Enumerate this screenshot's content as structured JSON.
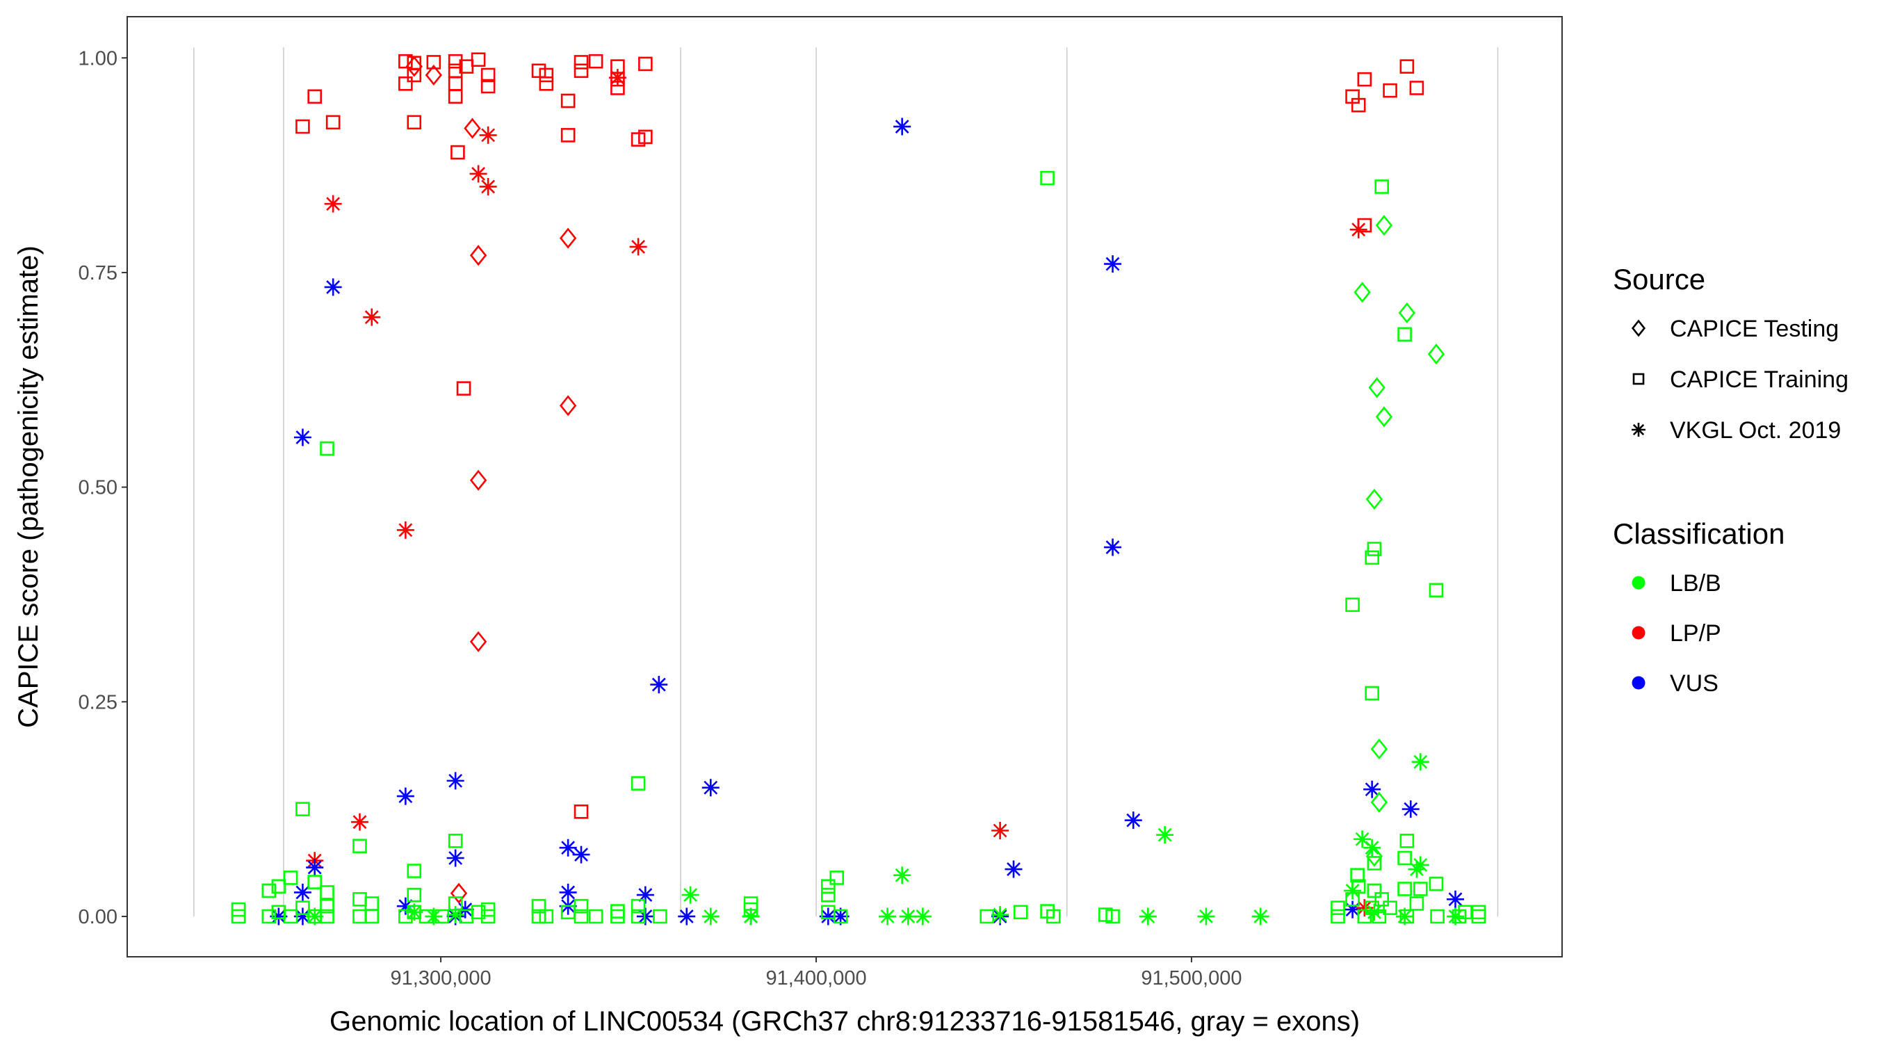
{
  "chart_data": {
    "type": "scatter",
    "title": "",
    "xlabel": "Genomic location of LINC00534 (GRCh37 chr8:91233716-91581546, gray = exons)",
    "ylabel": "CAPICE score (pathogenicity estimate)",
    "xlim": [
      91216450,
      91598730
    ],
    "ylim": [
      -0.047,
      1.048
    ],
    "x_ticks": [
      91300000,
      91400000,
      91500000
    ],
    "x_tick_labels": [
      "91,300,000",
      "91,400,000",
      "91,500,000"
    ],
    "y_ticks": [
      0,
      0.25,
      0.5,
      0.75,
      1.0
    ],
    "y_tick_labels": [
      "0.00",
      "0.25",
      "0.50",
      "0.75",
      "1.00"
    ],
    "grid": false,
    "exon_lines": [
      91234200,
      91258100,
      91363900,
      91400000,
      91466800,
      91581600
    ],
    "exon_color": "#cccccc",
    "legend_placement": "right",
    "legends": {
      "source": {
        "title": "Source",
        "items": [
          {
            "label": "CAPICE Testing",
            "shape": "diamond"
          },
          {
            "label": "CAPICE Training",
            "shape": "square"
          },
          {
            "label": "VKGL Oct. 2019",
            "shape": "asterisk"
          }
        ]
      },
      "classification": {
        "title": "Classification",
        "items": [
          {
            "label": "LB/B",
            "color": "#00ff00"
          },
          {
            "label": "LP/P",
            "color": "#ff0000"
          },
          {
            "label": "VUS",
            "color": "#0000ff"
          }
        ]
      }
    },
    "series": [
      {
        "source": "CAPICE Training",
        "shape": "square",
        "class": "LP/P",
        "color": "#ff0000",
        "points": [
          [
            91290600,
            0.996
          ],
          [
            91292900,
            0.994
          ],
          [
            91298100,
            0.995
          ],
          [
            91303900,
            0.996
          ],
          [
            91310000,
            0.998
          ],
          [
            91303900,
            0.985
          ],
          [
            91306800,
            0.99
          ],
          [
            91303900,
            0.97
          ],
          [
            91312600,
            0.98
          ],
          [
            91312600,
            0.967
          ],
          [
            91292900,
            0.98
          ],
          [
            91290600,
            0.97
          ],
          [
            91292900,
            0.925
          ],
          [
            91303900,
            0.955
          ],
          [
            91304500,
            0.89
          ],
          [
            91326100,
            0.985
          ],
          [
            91328100,
            0.98
          ],
          [
            91328100,
            0.97
          ],
          [
            91337400,
            0.995
          ],
          [
            91341300,
            0.996
          ],
          [
            91337400,
            0.985
          ],
          [
            91347100,
            0.99
          ],
          [
            91347100,
            0.975
          ],
          [
            91347100,
            0.965
          ],
          [
            91354500,
            0.993
          ],
          [
            91333900,
            0.95
          ],
          [
            91333900,
            0.91
          ],
          [
            91352600,
            0.905
          ],
          [
            91354500,
            0.908
          ],
          [
            91266400,
            0.955
          ],
          [
            91263200,
            0.92
          ],
          [
            91271300,
            0.925
          ],
          [
            91306100,
            0.615
          ],
          [
            91337400,
            0.122
          ],
          [
            91542900,
            0.955
          ],
          [
            91544500,
            0.945
          ],
          [
            91546100,
            0.975
          ],
          [
            91552900,
            0.962
          ],
          [
            91557400,
            0.99
          ],
          [
            91560000,
            0.965
          ],
          [
            91546100,
            0.805
          ]
        ]
      },
      {
        "source": "CAPICE Testing",
        "shape": "diamond",
        "class": "LP/P",
        "color": "#ff0000",
        "points": [
          [
            91298100,
            0.98
          ],
          [
            91308400,
            0.918
          ],
          [
            91310000,
            0.77
          ],
          [
            91333900,
            0.79
          ],
          [
            91333900,
            0.595
          ],
          [
            91310000,
            0.508
          ],
          [
            91310000,
            0.32
          ],
          [
            91292900,
            0.99
          ],
          [
            91304800,
            0.027
          ]
        ]
      },
      {
        "source": "VKGL Oct. 2019",
        "shape": "asterisk",
        "class": "LP/P",
        "color": "#ff0000",
        "points": [
          [
            91312600,
            0.91
          ],
          [
            91310000,
            0.865
          ],
          [
            91312600,
            0.85
          ],
          [
            91271300,
            0.83
          ],
          [
            91281600,
            0.698
          ],
          [
            91352600,
            0.78
          ],
          [
            91290600,
            0.45
          ],
          [
            91278400,
            0.11
          ],
          [
            91266400,
            0.065
          ],
          [
            91449000,
            0.1
          ],
          [
            91544500,
            0.8
          ],
          [
            91546100,
            0.01
          ],
          [
            91347100,
            0.977
          ]
        ]
      },
      {
        "source": "VKGL Oct. 2019",
        "shape": "asterisk",
        "class": "VUS",
        "color": "#0000ff",
        "points": [
          [
            91422900,
            0.92
          ],
          [
            91479000,
            0.76
          ],
          [
            91271300,
            0.733
          ],
          [
            91263200,
            0.558
          ],
          [
            91479000,
            0.43
          ],
          [
            91358100,
            0.27
          ],
          [
            91303900,
            0.158
          ],
          [
            91371900,
            0.15
          ],
          [
            91290600,
            0.14
          ],
          [
            91548100,
            0.148
          ],
          [
            91558400,
            0.125
          ],
          [
            91484500,
            0.112
          ],
          [
            91333900,
            0.08
          ],
          [
            91337400,
            0.072
          ],
          [
            91303900,
            0.068
          ],
          [
            91452600,
            0.055
          ],
          [
            91266400,
            0.057
          ],
          [
            91263200,
            0.028
          ],
          [
            91333900,
            0.028
          ],
          [
            91354500,
            0.025
          ],
          [
            91570300,
            0.02
          ],
          [
            91290600,
            0.012
          ],
          [
            91333900,
            0.012
          ],
          [
            91306500,
            0.008
          ],
          [
            91256800,
            0.0
          ],
          [
            91303900,
            0.0
          ],
          [
            91354500,
            0.0
          ],
          [
            91365500,
            0.0
          ],
          [
            91382600,
            0.0
          ],
          [
            91403200,
            0.0
          ],
          [
            91406500,
            0.0
          ],
          [
            91449000,
            0.0
          ],
          [
            91542900,
            0.008
          ],
          [
            91263200,
            0.0
          ]
        ]
      },
      {
        "source": "CAPICE Training",
        "shape": "square",
        "class": "LB/B",
        "color": "#00ff00",
        "points": [
          [
            91461600,
            0.86
          ],
          [
            91550700,
            0.85
          ],
          [
            91556800,
            0.678
          ],
          [
            91269700,
            0.545
          ],
          [
            91565200,
            0.38
          ],
          [
            91548700,
            0.428
          ],
          [
            91548100,
            0.418
          ],
          [
            91542900,
            0.363
          ],
          [
            91548100,
            0.26
          ],
          [
            91263200,
            0.125
          ],
          [
            91352600,
            0.155
          ],
          [
            91278400,
            0.082
          ],
          [
            91303900,
            0.088
          ],
          [
            91292900,
            0.053
          ],
          [
            91405500,
            0.045
          ],
          [
            91557400,
            0.088
          ],
          [
            91556800,
            0.068
          ],
          [
            91565200,
            0.038
          ],
          [
            91544200,
            0.048
          ],
          [
            91548700,
            0.062
          ],
          [
            91403200,
            0.035
          ],
          [
            91403200,
            0.025
          ],
          [
            91254200,
            0.03
          ],
          [
            91256800,
            0.035
          ],
          [
            91246100,
            0.0
          ],
          [
            91246100,
            0.008
          ],
          [
            91254200,
            0.0
          ],
          [
            91256800,
            0.005
          ],
          [
            91260000,
            0.0
          ],
          [
            91260000,
            0.045
          ],
          [
            91263200,
            0.01
          ],
          [
            91266400,
            0.0
          ],
          [
            91266400,
            0.04
          ],
          [
            91269700,
            0.0
          ],
          [
            91269700,
            0.012
          ],
          [
            91269700,
            0.028
          ],
          [
            91278400,
            0.0
          ],
          [
            91278400,
            0.02
          ],
          [
            91281600,
            0.0
          ],
          [
            91281600,
            0.015
          ],
          [
            91290600,
            0.0
          ],
          [
            91292900,
            0.005
          ],
          [
            91292900,
            0.025
          ],
          [
            91296100,
            0.0
          ],
          [
            91300300,
            0.0
          ],
          [
            91303900,
            0.015
          ],
          [
            91306800,
            0.0
          ],
          [
            91310000,
            0.005
          ],
          [
            91312600,
            0.0
          ],
          [
            91312600,
            0.008
          ],
          [
            91326100,
            0.0
          ],
          [
            91326100,
            0.012
          ],
          [
            91328100,
            0.0
          ],
          [
            91333900,
            0.005
          ],
          [
            91337400,
            0.0
          ],
          [
            91337400,
            0.012
          ],
          [
            91341300,
            0.0
          ],
          [
            91347100,
            0.0
          ],
          [
            91347100,
            0.006
          ],
          [
            91352600,
            0.0
          ],
          [
            91352600,
            0.012
          ],
          [
            91358400,
            0.0
          ],
          [
            91382600,
            0.008
          ],
          [
            91382600,
            0.015
          ],
          [
            91403200,
            0.005
          ],
          [
            91406500,
            0.0
          ],
          [
            91445500,
            0.0
          ],
          [
            91454500,
            0.005
          ],
          [
            91463200,
            0.0
          ],
          [
            91461600,
            0.006
          ],
          [
            91477100,
            0.002
          ],
          [
            91479000,
            0.0
          ],
          [
            91539000,
            0.0
          ],
          [
            91539000,
            0.01
          ],
          [
            91542900,
            0.02
          ],
          [
            91544500,
            0.035
          ],
          [
            91546100,
            0.0
          ],
          [
            91548100,
            0.01
          ],
          [
            91548700,
            0.03
          ],
          [
            91550000,
            0.0
          ],
          [
            91550700,
            0.02
          ],
          [
            91552900,
            0.01
          ],
          [
            91556800,
            0.032
          ],
          [
            91557400,
            0.0
          ],
          [
            91560000,
            0.015
          ],
          [
            91561000,
            0.032
          ],
          [
            91565500,
            0.0
          ],
          [
            91571300,
            0.0
          ],
          [
            91572900,
            0.005
          ],
          [
            91576500,
            0.0
          ],
          [
            91576500,
            0.005
          ]
        ]
      },
      {
        "source": "CAPICE Testing",
        "shape": "diamond",
        "class": "LB/B",
        "color": "#00ff00",
        "points": [
          [
            91551300,
            0.805
          ],
          [
            91545500,
            0.727
          ],
          [
            91557400,
            0.703
          ],
          [
            91565200,
            0.655
          ],
          [
            91549400,
            0.616
          ],
          [
            91551300,
            0.582
          ],
          [
            91548700,
            0.486
          ],
          [
            91550000,
            0.195
          ],
          [
            91550000,
            0.133
          ],
          [
            91548700,
            0.07
          ]
        ]
      },
      {
        "source": "VKGL Oct. 2019",
        "shape": "asterisk",
        "class": "LB/B",
        "color": "#00ff00",
        "points": [
          [
            91561000,
            0.18
          ],
          [
            91492900,
            0.095
          ],
          [
            91545500,
            0.09
          ],
          [
            91548100,
            0.08
          ],
          [
            91422900,
            0.048
          ],
          [
            91366500,
            0.025
          ],
          [
            91560000,
            0.055
          ],
          [
            91561000,
            0.06
          ],
          [
            91542900,
            0.03
          ],
          [
            91266400,
            0.0
          ],
          [
            91292900,
            0.005
          ],
          [
            91298100,
            0.0
          ],
          [
            91303900,
            0.002
          ],
          [
            91371900,
            0.0
          ],
          [
            91382600,
            0.0
          ],
          [
            91419000,
            0.0
          ],
          [
            91424500,
            0.0
          ],
          [
            91428400,
            0.0
          ],
          [
            91449000,
            0.002
          ],
          [
            91488400,
            0.0
          ],
          [
            91503900,
            0.0
          ],
          [
            91518400,
            0.0
          ],
          [
            91556800,
            0.0
          ],
          [
            91570300,
            0.0
          ],
          [
            91548700,
            0.005
          ]
        ]
      }
    ]
  }
}
